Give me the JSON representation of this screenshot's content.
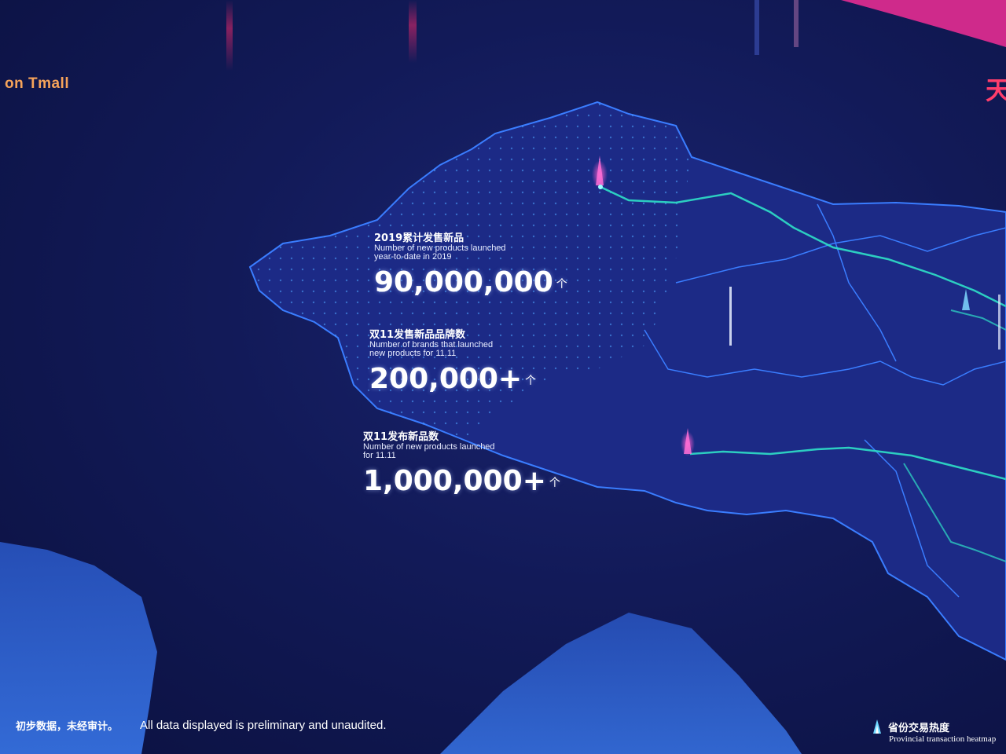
{
  "header": {
    "left_text": "on Tmall",
    "right_text": "天"
  },
  "stats": [
    {
      "zh": "2019累计发售新品",
      "en_line1": "Number of new products launched",
      "en_line2": "year-to-date in 2019",
      "value": "90,000,000",
      "unit": "个"
    },
    {
      "zh": "双11发售新品品牌数",
      "en_line1": "Number of brands that launched",
      "en_line2": "new products for 11.11",
      "value": "200,000+",
      "unit": "个"
    },
    {
      "zh": "双11发布新品数",
      "en_line1": "Number of new products launched",
      "en_line2": "for 11.11",
      "value": "1,000,000+",
      "unit": "个"
    }
  ],
  "footer": {
    "disclaimer_zh": "初步数据，未经审计。",
    "disclaimer_en": "All data displayed is preliminary and unaudited."
  },
  "legend": {
    "label_zh": "省份交易热度",
    "label_en": "Provincial transaction heatmap"
  },
  "colors": {
    "background": "#121a58",
    "map_fill": "#1c2a86",
    "border": "#3a7dff",
    "route": "#2fe0c8",
    "accent_orange": "#f6a35a",
    "accent_pink": "#ff3d6b",
    "sea": "#2e6ae0"
  }
}
